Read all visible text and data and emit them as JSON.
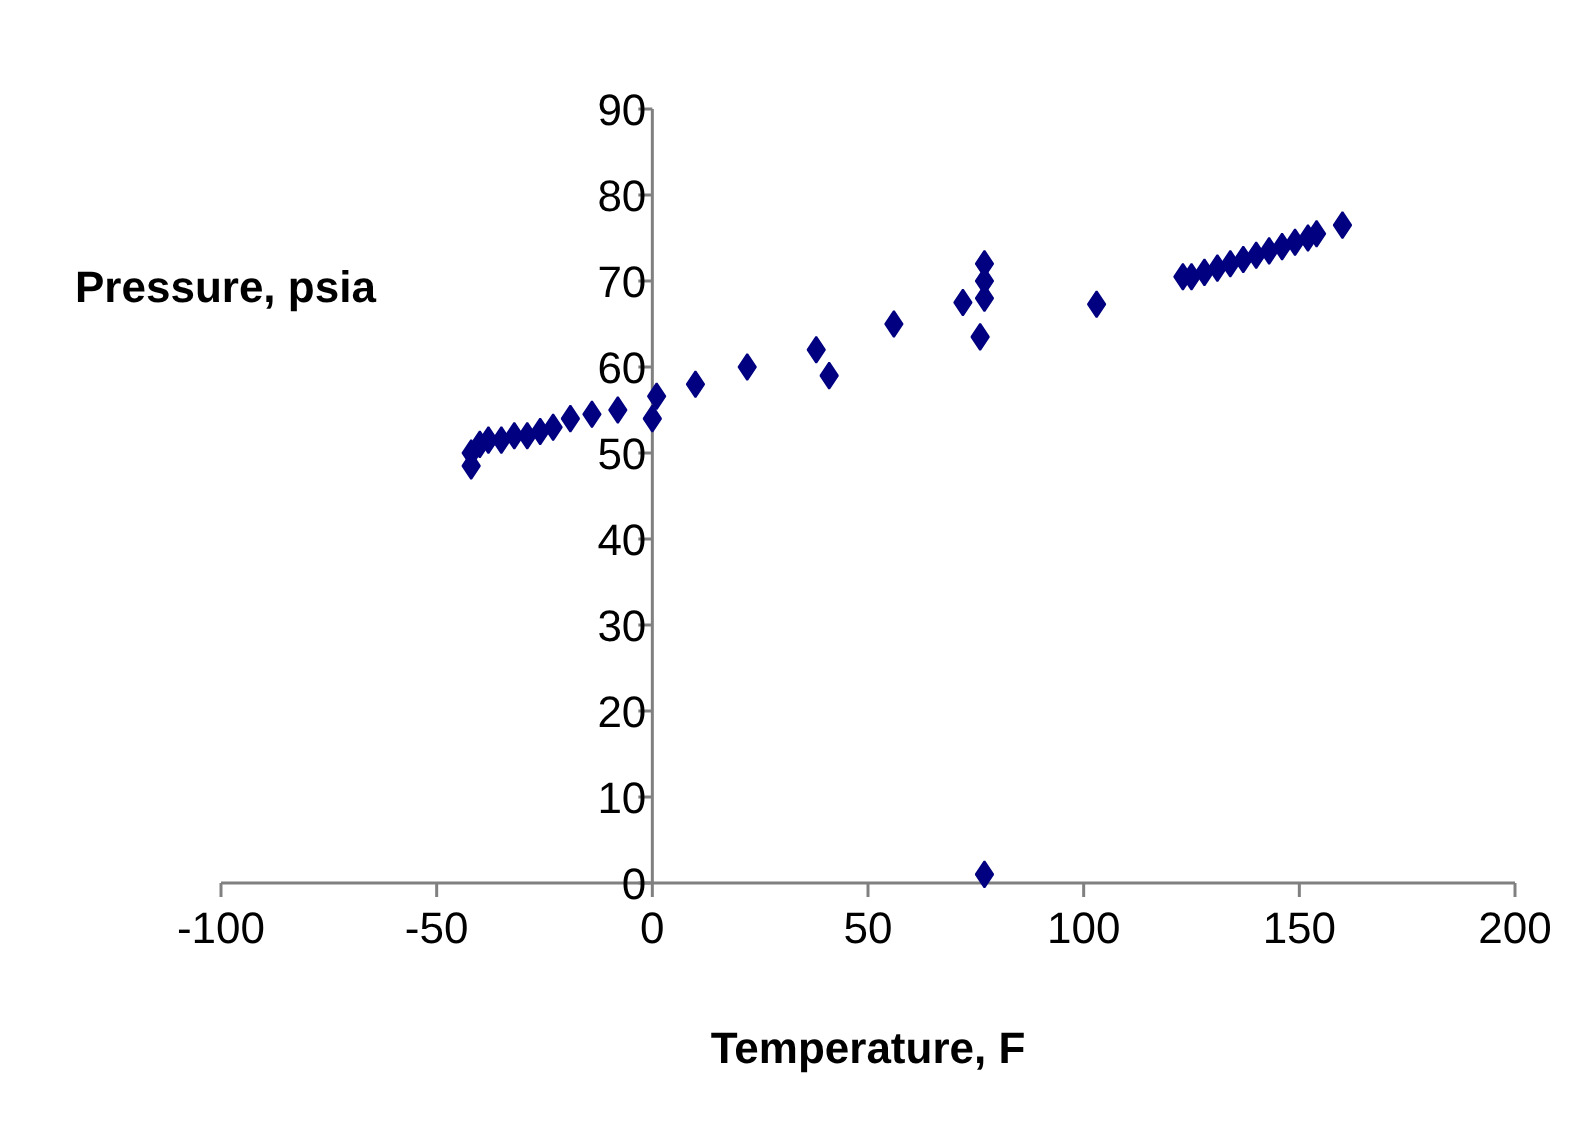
{
  "chart_data": {
    "type": "scatter",
    "xlabel": "Temperature, F",
    "ylabel": "Pressure, psia",
    "x": [
      -42,
      -42,
      -40,
      -38,
      -35,
      -32,
      -29,
      -26,
      -23,
      -19,
      -14,
      -8,
      0,
      1,
      10,
      22,
      38,
      41,
      56,
      72,
      76,
      77,
      77,
      77,
      77,
      103,
      123,
      125,
      128,
      131,
      134,
      137,
      140,
      143,
      146,
      149,
      152,
      154,
      160
    ],
    "series": [
      {
        "color": "#000080",
        "values": [
          48.5,
          50,
          51,
          51.5,
          51.5,
          52,
          52,
          52.5,
          53,
          54,
          54.5,
          55,
          54,
          56.6,
          58,
          60,
          62,
          59,
          65,
          67.5,
          63.5,
          1,
          68,
          70,
          72,
          67.3,
          70.5,
          70.5,
          71,
          71.5,
          72,
          72.5,
          73,
          73.5,
          74,
          74.5,
          75,
          75.5,
          76.5
        ]
      }
    ],
    "marker": "diamond",
    "xlim": [
      -100,
      200
    ],
    "ylim": [
      0,
      90
    ],
    "xticks": [
      -100,
      -50,
      0,
      50,
      100,
      150,
      200
    ],
    "yticks": [
      0,
      10,
      20,
      30,
      40,
      50,
      60,
      70,
      80,
      90
    ],
    "grid": false
  }
}
